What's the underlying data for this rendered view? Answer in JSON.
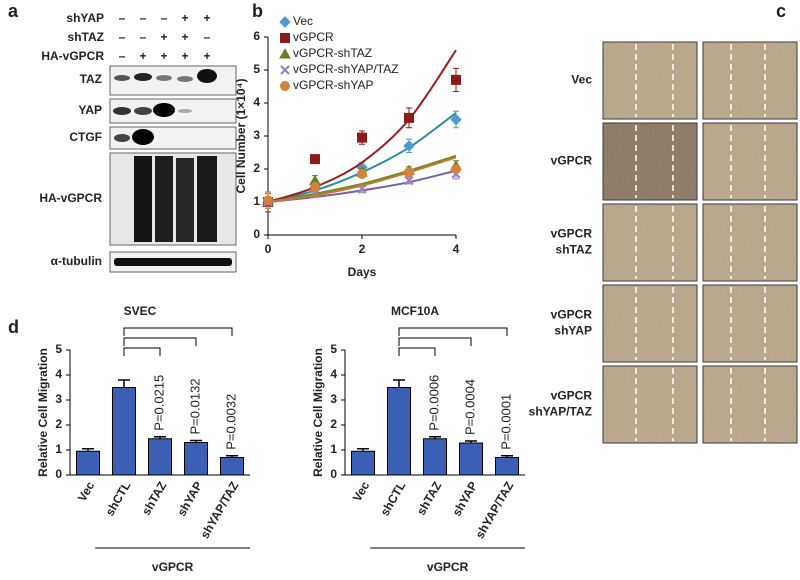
{
  "panel_labels": [
    "a",
    "b",
    "c",
    "d"
  ],
  "blot": {
    "conditions": [
      {
        "label": "shYAP",
        "signs": [
          "–",
          "–",
          "–",
          "+",
          "+"
        ]
      },
      {
        "label": "shTAZ",
        "signs": [
          "–",
          "–",
          "+",
          "+",
          "–"
        ]
      },
      {
        "label": "HA-vGPCR",
        "signs": [
          "–",
          "+",
          "+",
          "+",
          "+"
        ]
      }
    ],
    "bands": [
      "TAZ",
      "YAP",
      "CTGF",
      "HA-vGPCR",
      "α-tubulin"
    ]
  },
  "wound": {
    "rows": [
      [
        "Vec"
      ],
      [
        "vGPCR"
      ],
      [
        "vGPCR",
        "shTAZ"
      ],
      [
        "vGPCR",
        "shYAP"
      ],
      [
        "vGPCR",
        "shYAP/TAZ"
      ]
    ]
  },
  "chart_data": [
    {
      "type": "line",
      "xlabel": "Days",
      "ylabel": "Cell Number (1×10⁴)",
      "x": [
        0,
        1,
        2,
        3,
        4
      ],
      "xlim": [
        0,
        4
      ],
      "xticks": [
        0,
        2,
        4
      ],
      "ylim": [
        0,
        6
      ],
      "yticks": [
        0,
        1,
        2,
        3,
        4,
        5,
        6
      ],
      "series": [
        {
          "name": "Vec",
          "color": "#4a9bd1",
          "fit_color": "#2a8f9c",
          "marker": "diamond",
          "values": [
            1.0,
            1.45,
            2.05,
            2.7,
            3.5
          ],
          "errors": [
            0.15,
            0.1,
            0.15,
            0.2,
            0.25
          ],
          "fit": [
            1.0,
            1.35,
            1.9,
            2.65,
            3.7
          ]
        },
        {
          "name": "vGPCR",
          "color": "#8b1a1a",
          "fit_color": "#a01c22",
          "marker": "square",
          "values": [
            1.0,
            2.3,
            2.95,
            3.55,
            4.7
          ],
          "errors": [
            0.3,
            0.05,
            0.2,
            0.3,
            0.35
          ],
          "fit": [
            1.0,
            1.45,
            2.2,
            3.5,
            5.6
          ]
        },
        {
          "name": "vGPCR-shTAZ",
          "color": "#6b7f2a",
          "fit_color": "#6b8e23",
          "marker": "triangle",
          "values": [
            1.05,
            1.65,
            1.9,
            1.95,
            2.1
          ],
          "errors": [
            0.2,
            0.15,
            0.12,
            0.12,
            0.15
          ],
          "fit": [
            1.0,
            1.25,
            1.55,
            1.95,
            2.4
          ]
        },
        {
          "name": "vGPCR-shYAP/TAZ",
          "color": "#9a7fbf",
          "fit_color": "#7a5fa8",
          "marker": "x",
          "values": [
            1.0,
            1.25,
            1.4,
            1.65,
            1.85
          ],
          "errors": [
            0.15,
            0.1,
            0.12,
            0.1,
            0.15
          ],
          "fit": [
            1.0,
            1.15,
            1.35,
            1.6,
            1.95
          ]
        },
        {
          "name": "vGPCR-shYAP",
          "color": "#d4823c",
          "fit_color": "#c9752e",
          "marker": "circle",
          "values": [
            1.05,
            1.45,
            1.85,
            1.9,
            2.0
          ],
          "errors": [
            0.25,
            0.1,
            0.1,
            0.1,
            0.12
          ],
          "fit": [
            1.0,
            1.2,
            1.5,
            1.9,
            2.35
          ]
        }
      ]
    },
    {
      "type": "bar",
      "title": "SVEC",
      "ylabel": "Relative Cell Migration",
      "categories": [
        "Vec",
        "shCTL",
        "shTAZ",
        "shYAP",
        "shYAP/TAZ"
      ],
      "values": [
        0.95,
        3.5,
        1.45,
        1.3,
        0.7
      ],
      "errors": [
        0.1,
        0.3,
        0.08,
        0.08,
        0.07
      ],
      "p_values": [
        null,
        null,
        "P=0.0215",
        "P=0.0132",
        "P=0.0032"
      ],
      "group_label": "vGPCR",
      "color": "#3a5fb5",
      "ylim": [
        0,
        5
      ],
      "yticks": [
        0,
        1,
        2,
        3,
        4,
        5
      ]
    },
    {
      "type": "bar",
      "title": "MCF10A",
      "ylabel": "Relative Cell Migration",
      "categories": [
        "Vec",
        "shCTL",
        "shTAZ",
        "shYAP",
        "shYAP/TAZ"
      ],
      "values": [
        0.95,
        3.5,
        1.45,
        1.28,
        0.7
      ],
      "errors": [
        0.1,
        0.3,
        0.08,
        0.08,
        0.07
      ],
      "p_values": [
        null,
        null,
        "P=0.0006",
        "P=0.0004",
        "P=0.0001"
      ],
      "group_label": "vGPCR",
      "color": "#3a5fb5",
      "ylim": [
        0,
        5
      ],
      "yticks": [
        0,
        1,
        2,
        3,
        4,
        5
      ]
    }
  ]
}
